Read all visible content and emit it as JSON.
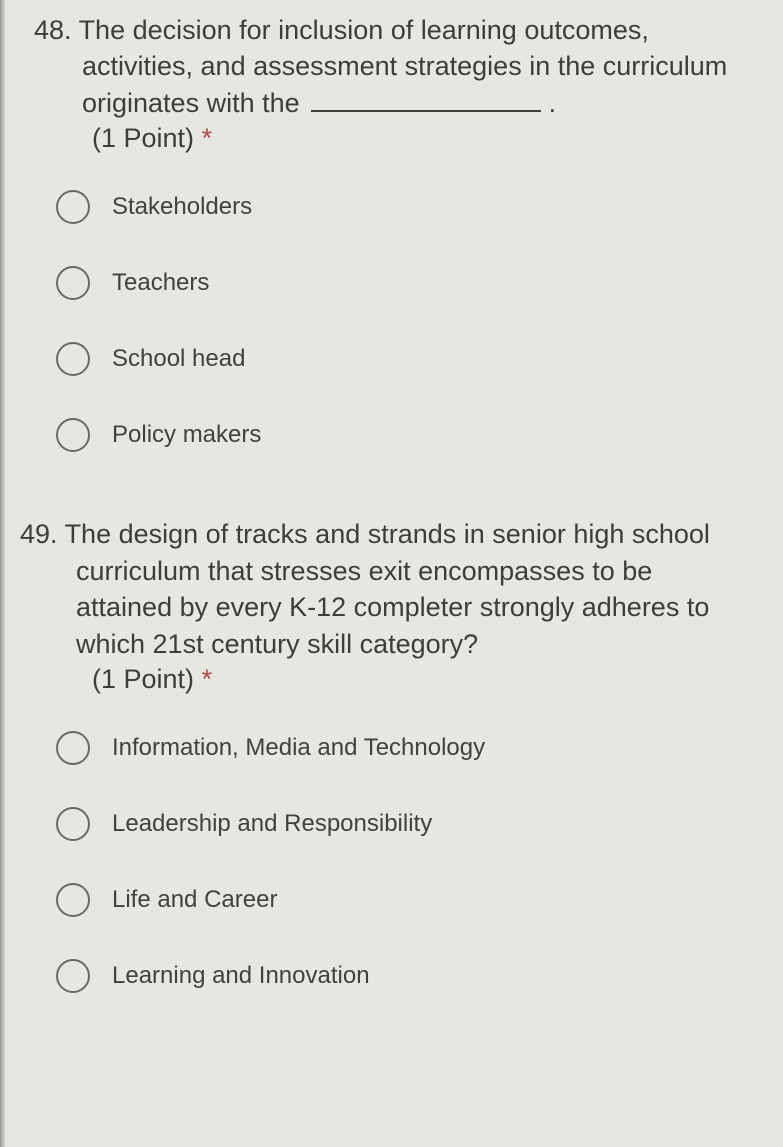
{
  "questions": [
    {
      "number": "48.",
      "text_before_blank": "The decision for inclusion of learning outcomes, activities, and assessment strategies in the curriculum originates with the",
      "text_after_blank": ".",
      "points": "(1 Point)",
      "asterisk": "*",
      "options": [
        "Stakeholders",
        "Teachers",
        "School head",
        "Policy makers"
      ]
    },
    {
      "number": "49.",
      "text": "The design of tracks and strands in senior high school curriculum that stresses exit encompasses to be attained by every K-12 completer strongly adheres to which 21st century skill category?",
      "points": "(1 Point)",
      "asterisk": "*",
      "options": [
        "Information, Media and Technology",
        "Leadership and Responsibility",
        "Life and Career",
        "Learning and Innovation"
      ]
    }
  ],
  "colors": {
    "background": "#e8e6e1",
    "text": "#3d3d3d",
    "option_text": "#414141",
    "radio_border": "#6a6a6a",
    "asterisk": "#b04a4a"
  }
}
